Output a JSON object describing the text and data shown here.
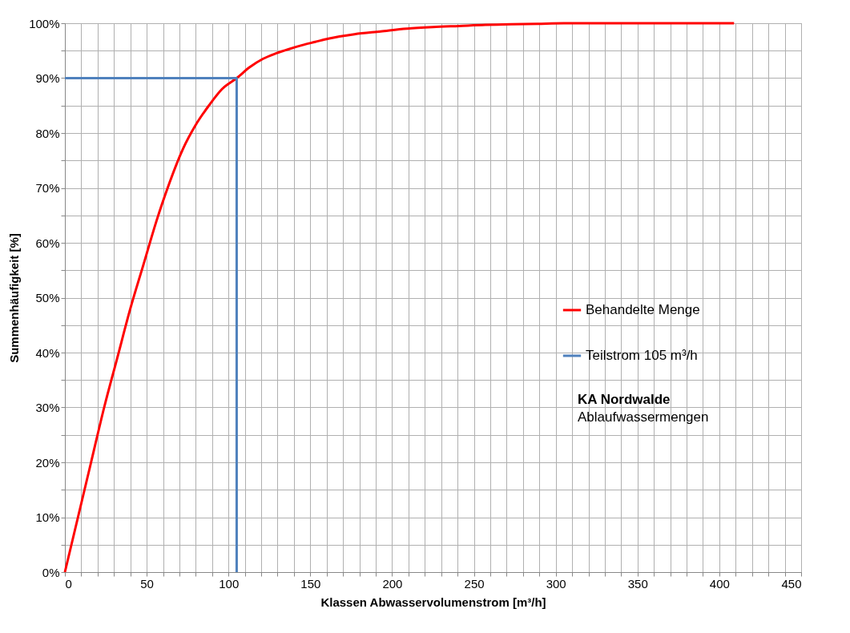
{
  "chart_data": {
    "type": "line",
    "xlabel": "Klassen Abwasservolumenstrom [m³/h]",
    "ylabel": "Summenhäufigkeit [%]",
    "xlim": [
      0,
      450
    ],
    "ylim": [
      0,
      100
    ],
    "xticks": [
      0,
      {
        "value": 10,
        "label": null
      },
      {
        "value": 20,
        "label": null
      },
      {
        "value": 30,
        "label": null
      },
      {
        "value": 40,
        "label": null
      },
      50,
      {
        "value": 60,
        "label": null
      },
      {
        "value": 70,
        "label": null
      },
      {
        "value": 80,
        "label": null
      },
      {
        "value": 90,
        "label": null
      },
      100,
      {
        "value": 110,
        "label": null
      },
      {
        "value": 120,
        "label": null
      },
      {
        "value": 130,
        "label": null
      },
      {
        "value": 140,
        "label": null
      },
      150,
      {
        "value": 160,
        "label": null
      },
      {
        "value": 170,
        "label": null
      },
      {
        "value": 180,
        "label": null
      },
      {
        "value": 190,
        "label": null
      },
      200,
      {
        "value": 210,
        "label": null
      },
      {
        "value": 220,
        "label": null
      },
      {
        "value": 230,
        "label": null
      },
      {
        "value": 240,
        "label": null
      },
      250,
      {
        "value": 260,
        "label": null
      },
      {
        "value": 270,
        "label": null
      },
      {
        "value": 280,
        "label": null
      },
      {
        "value": 290,
        "label": null
      },
      300,
      {
        "value": 310,
        "label": null
      },
      {
        "value": 320,
        "label": null
      },
      {
        "value": 330,
        "label": null
      },
      {
        "value": 340,
        "label": null
      },
      350,
      {
        "value": 360,
        "label": null
      },
      {
        "value": 370,
        "label": null
      },
      {
        "value": 380,
        "label": null
      },
      {
        "value": 390,
        "label": null
      },
      400,
      {
        "value": 410,
        "label": null
      },
      {
        "value": 420,
        "label": null
      },
      {
        "value": 430,
        "label": null
      },
      {
        "value": 440,
        "label": null
      },
      450
    ],
    "yticks": [
      {
        "value": 0,
        "label": "0%"
      },
      {
        "value": 5,
        "label": null
      },
      {
        "value": 10,
        "label": "10%"
      },
      {
        "value": 15,
        "label": null
      },
      {
        "value": 20,
        "label": "20%"
      },
      {
        "value": 25,
        "label": null
      },
      {
        "value": 30,
        "label": "30%"
      },
      {
        "value": 35,
        "label": null
      },
      {
        "value": 40,
        "label": "40%"
      },
      {
        "value": 45,
        "label": null
      },
      {
        "value": 50,
        "label": "50%"
      },
      {
        "value": 55,
        "label": null
      },
      {
        "value": 60,
        "label": "60%"
      },
      {
        "value": 65,
        "label": null
      },
      {
        "value": 70,
        "label": "70%"
      },
      {
        "value": 75,
        "label": null
      },
      {
        "value": 80,
        "label": "80%"
      },
      {
        "value": 85,
        "label": null
      },
      {
        "value": 90,
        "label": "90%"
      },
      {
        "value": 95,
        "label": null
      },
      {
        "value": 100,
        "label": "100%"
      }
    ],
    "grid": true,
    "legend": "right",
    "marker": "none",
    "series": [
      {
        "name": "Behandelte Menge",
        "color": "#ff0000",
        "x": [
          0,
          8,
          16,
          24,
          32,
          40,
          48,
          56,
          64,
          72,
          80,
          88,
          96,
          105,
          113,
          121,
          129,
          137,
          145,
          153,
          161,
          177,
          193,
          209,
          225,
          241,
          257,
          273,
          289,
          305,
          337,
          369,
          409
        ],
        "values": [
          0,
          10,
          20,
          30,
          39,
          48,
          56,
          64,
          71,
          77,
          81.5,
          85,
          88,
          90,
          92,
          93.5,
          94.5,
          95.3,
          96,
          96.6,
          97.2,
          98,
          98.5,
          99,
          99.3,
          99.5,
          99.7,
          99.8,
          99.9,
          100,
          100,
          100,
          100
        ]
      },
      {
        "name": "Teilstrom 105 m³/h",
        "color": "#4f81bd",
        "x": [
          0,
          105,
          105
        ],
        "values": [
          90,
          90,
          0
        ]
      }
    ],
    "annotations": [
      "KA Nordwalde",
      "Ablaufwassermengen"
    ]
  }
}
